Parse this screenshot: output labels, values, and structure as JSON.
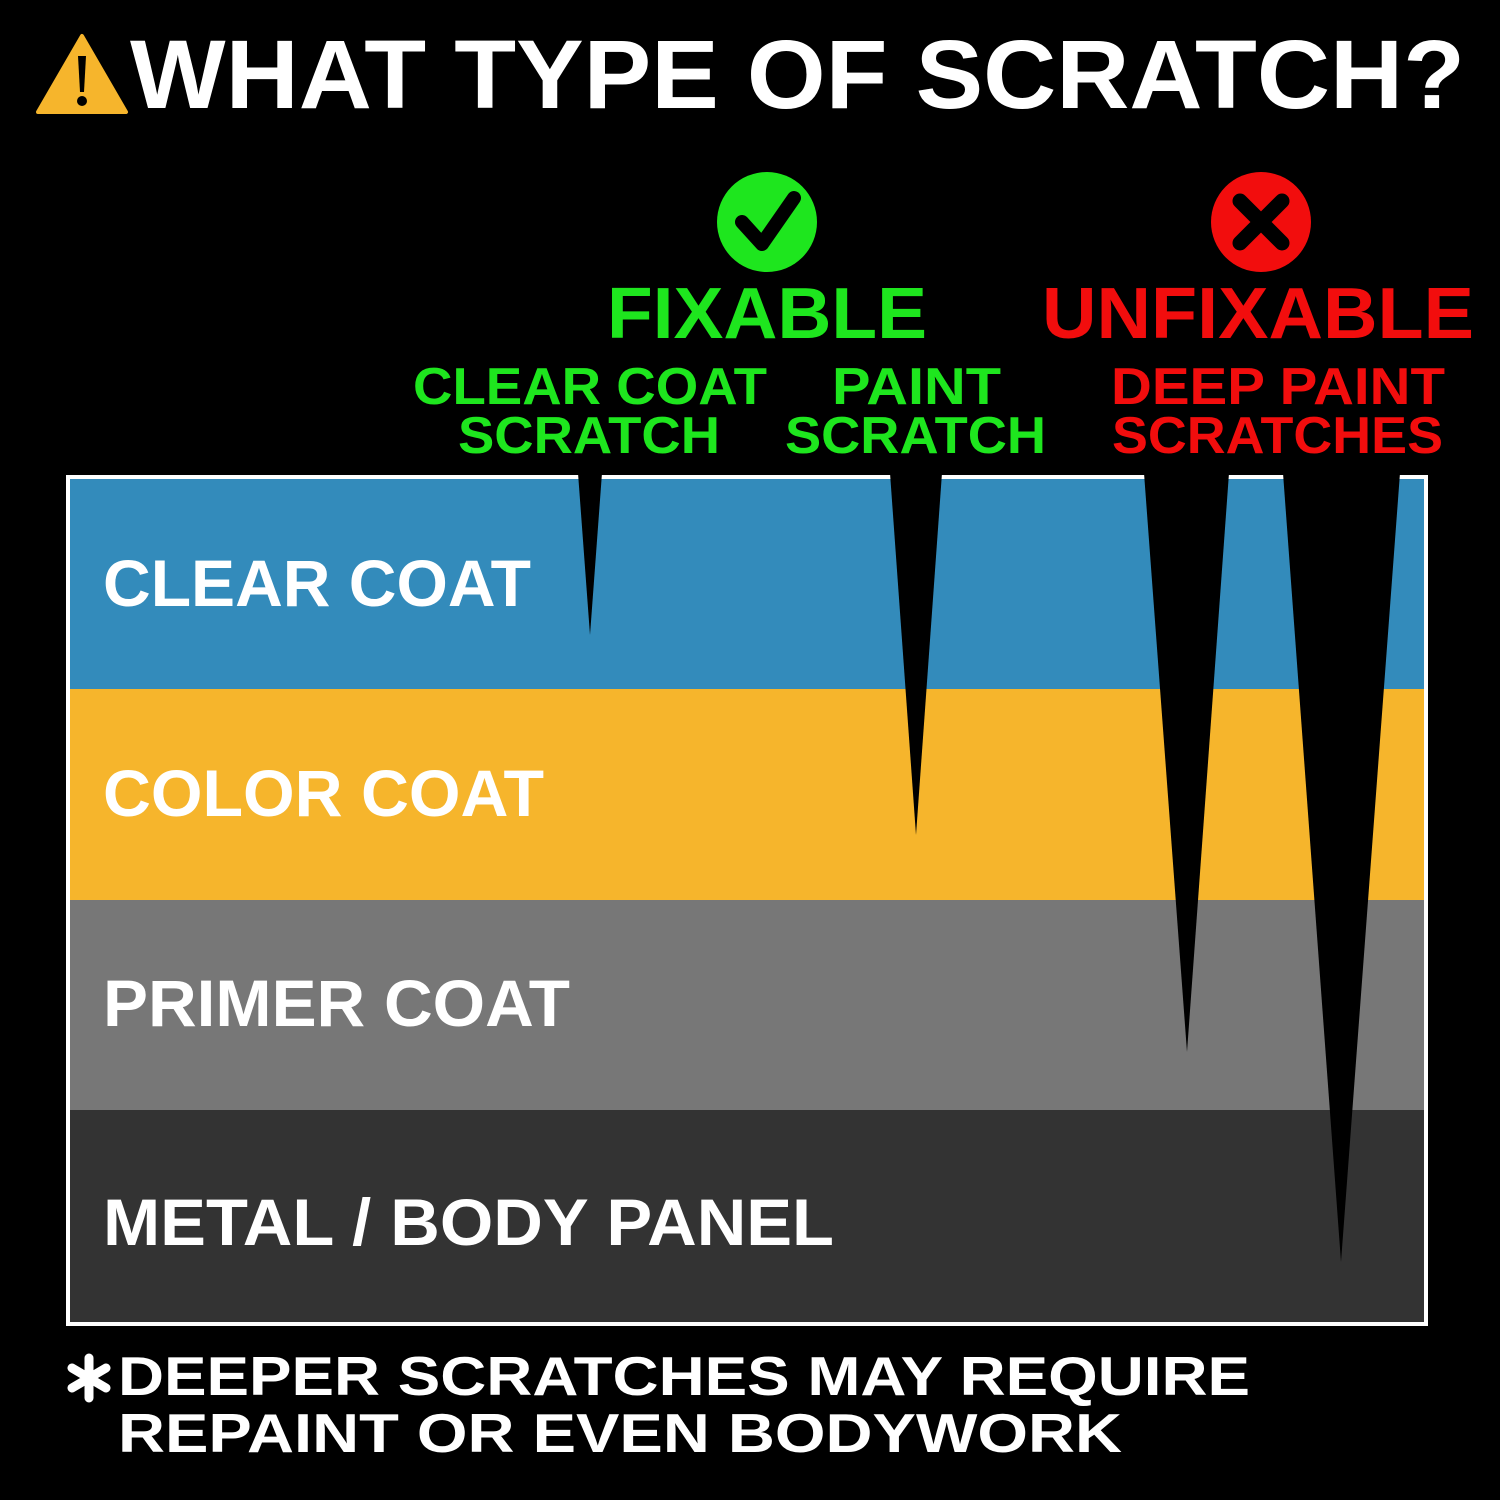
{
  "title": "WHAT TYPE OF SCRATCH?",
  "title_icon": "warning-triangle-icon",
  "categories": {
    "fixable": {
      "label": "FIXABLE",
      "icon": "check-circle-icon",
      "color": "#1ee61e"
    },
    "unfixable": {
      "label": "UNFIXABLE",
      "icon": "x-circle-icon",
      "color": "#f20d0d"
    }
  },
  "scratch_types": [
    {
      "line1": "CLEAR COAT",
      "line2": "SCRATCH",
      "category": "fixable"
    },
    {
      "line1": "PAINT",
      "line2": "SCRATCH",
      "category": "fixable"
    },
    {
      "line1": "DEEP PAINT",
      "line2": "SCRATCHES",
      "category": "unfixable"
    }
  ],
  "layers": [
    {
      "label": "CLEAR COAT",
      "color": "#338bbb"
    },
    {
      "label": "COLOR COAT",
      "color": "#f6b52c"
    },
    {
      "label": "PRIMER COAT",
      "color": "#777777"
    },
    {
      "label": "METAL / BODY PANEL",
      "color": "#333333"
    }
  ],
  "footnote": {
    "icon": "asterisk-icon",
    "line1": "DEEPER SCRATCHES MAY REQUIRE",
    "line2": "REPAINT OR EVEN BODYWORK"
  }
}
